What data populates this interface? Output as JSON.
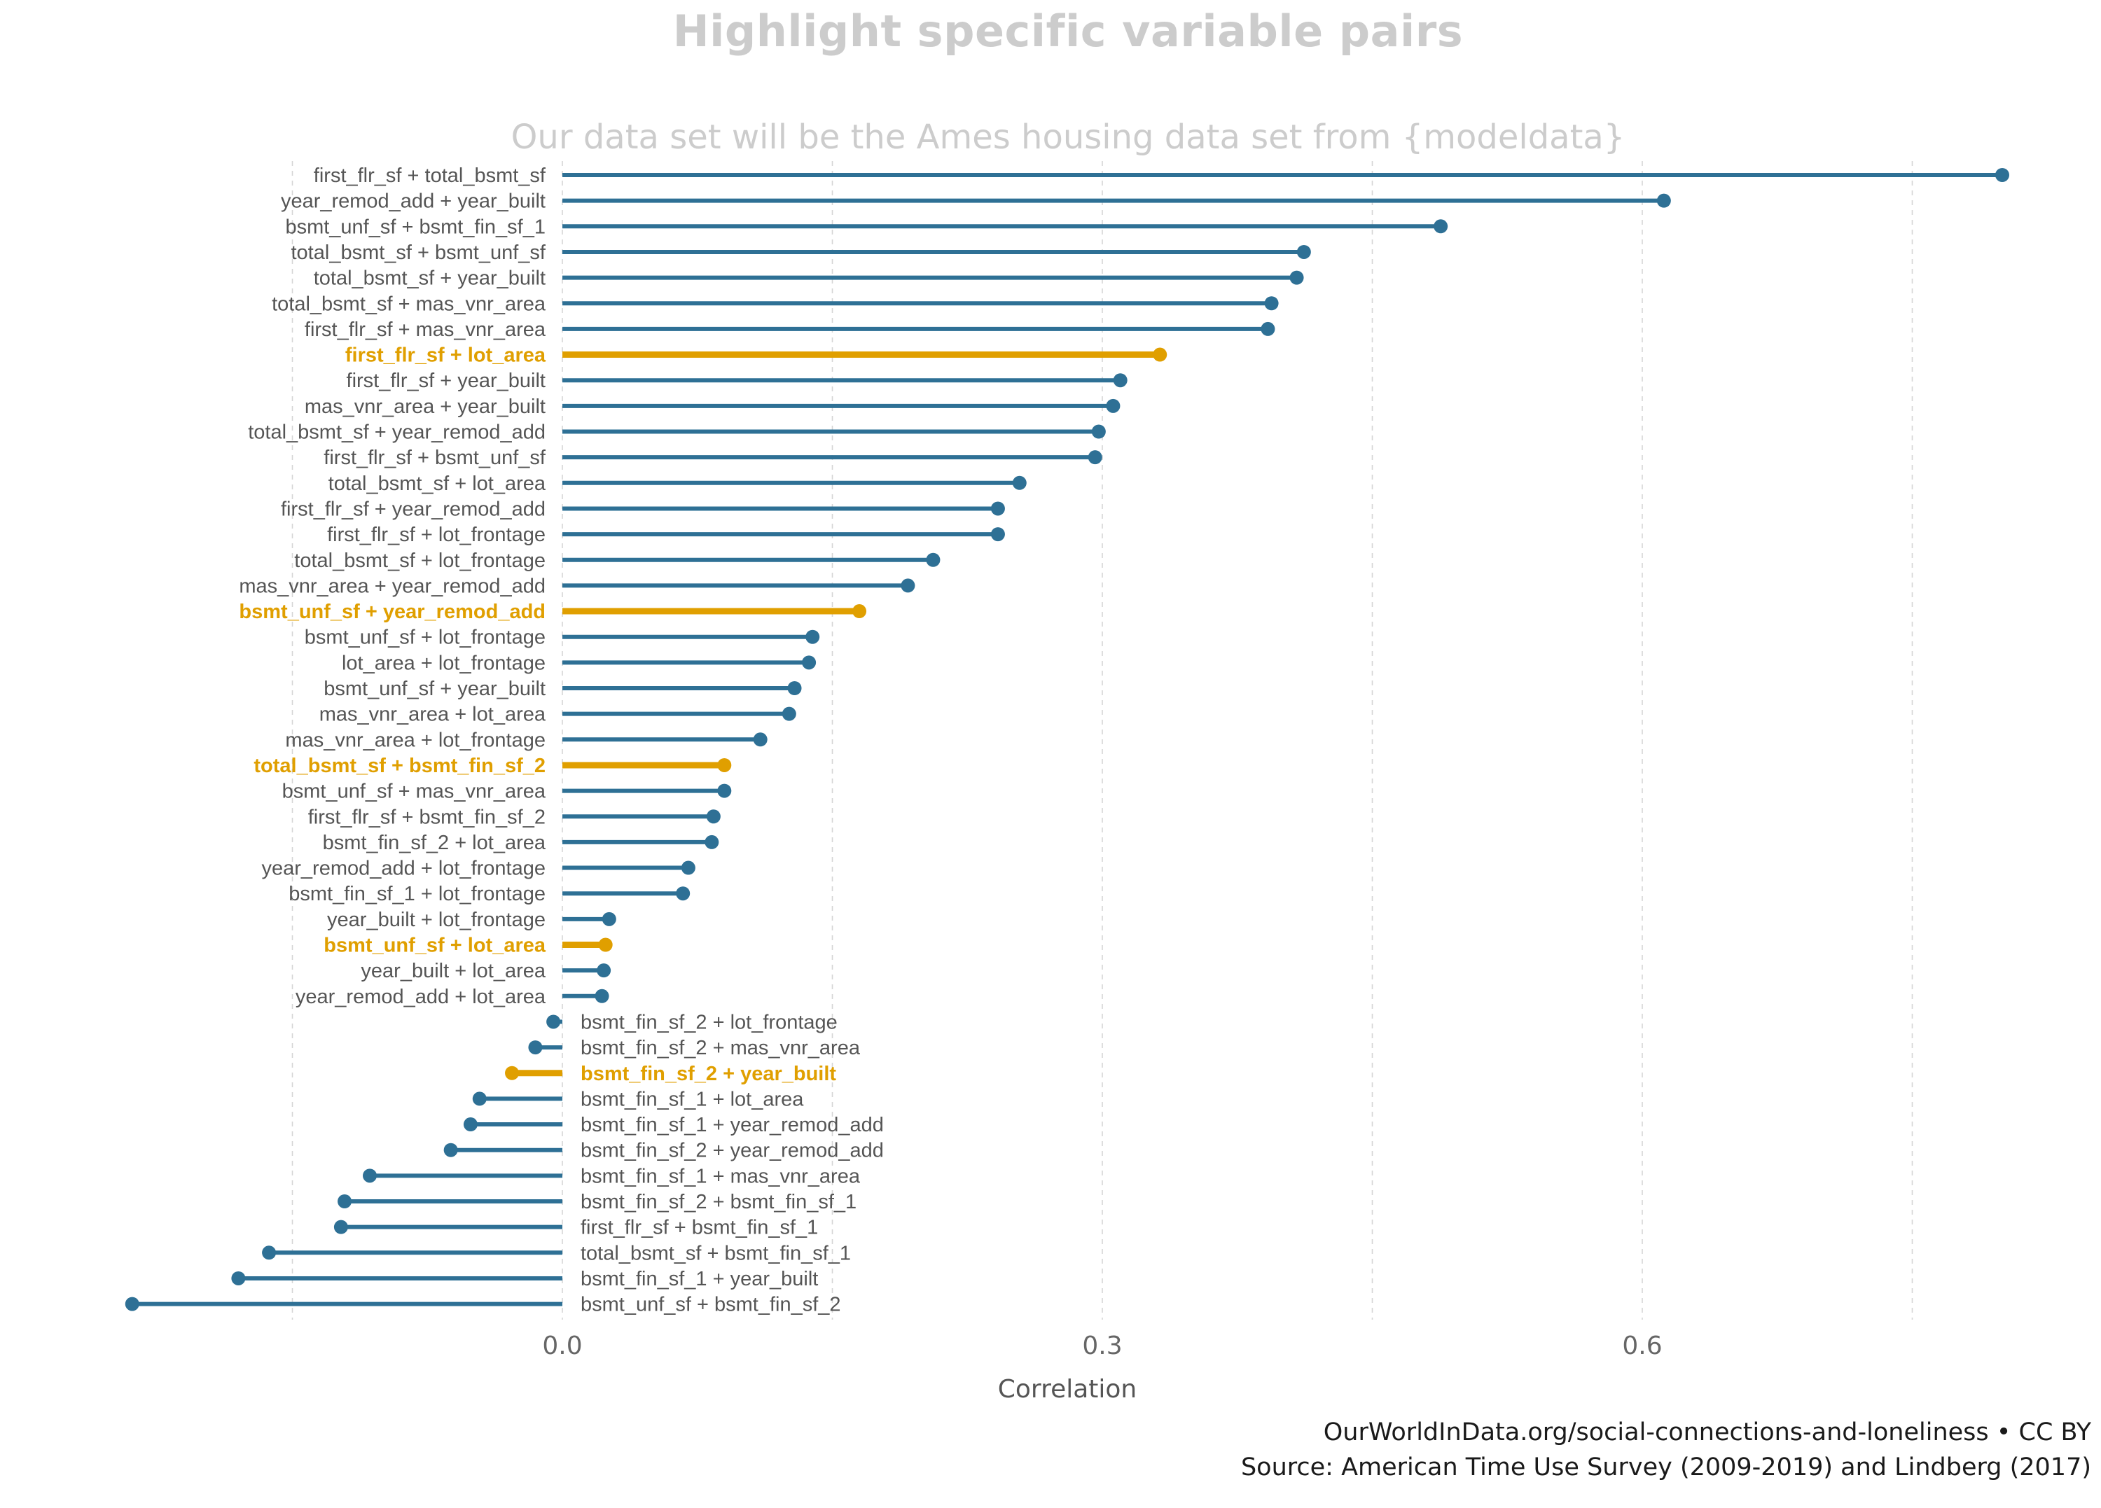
{
  "title": "Highlight specific variable pairs",
  "subtitle": "Our data set will be the Ames housing data set from {modeldata}",
  "caption": {
    "line1": "OurWorldInData.org/social-connections-and-loneliness  •  CC BY",
    "line2": "Source: American Time Use Survey (2009-2019) and Lindberg (2017)"
  },
  "colors": {
    "base": "#2e7095",
    "highlight": "#e09f00",
    "grid": "#d5d5d5",
    "label": "#555555",
    "title": "#cccccc"
  },
  "chart_data": {
    "type": "lollipop",
    "xlabel": "Correlation",
    "ylabel": "",
    "xlim": [
      -0.24,
      0.81
    ],
    "xticks": [
      0.0,
      0.3,
      0.6
    ],
    "xtick_labels": [
      "0.0",
      "0.3",
      "0.6"
    ],
    "grid": "vertical dashed",
    "pairs": [
      {
        "label": "first_flr_sf + total_bsmt_sf",
        "value": 0.8,
        "highlight": false
      },
      {
        "label": "year_remod_add + year_built",
        "value": 0.612,
        "highlight": false
      },
      {
        "label": "bsmt_unf_sf + bsmt_fin_sf_1",
        "value": 0.488,
        "highlight": false
      },
      {
        "label": "total_bsmt_sf + bsmt_unf_sf",
        "value": 0.412,
        "highlight": false
      },
      {
        "label": "total_bsmt_sf + year_built",
        "value": 0.408,
        "highlight": false
      },
      {
        "label": "total_bsmt_sf + mas_vnr_area",
        "value": 0.394,
        "highlight": false
      },
      {
        "label": "first_flr_sf + mas_vnr_area",
        "value": 0.392,
        "highlight": false
      },
      {
        "label": "first_flr_sf + lot_area",
        "value": 0.332,
        "highlight": true
      },
      {
        "label": "first_flr_sf + year_built",
        "value": 0.31,
        "highlight": false
      },
      {
        "label": "mas_vnr_area + year_built",
        "value": 0.306,
        "highlight": false
      },
      {
        "label": "total_bsmt_sf + year_remod_add",
        "value": 0.298,
        "highlight": false
      },
      {
        "label": "first_flr_sf + bsmt_unf_sf",
        "value": 0.296,
        "highlight": false
      },
      {
        "label": "total_bsmt_sf + lot_area",
        "value": 0.254,
        "highlight": false
      },
      {
        "label": "first_flr_sf + year_remod_add",
        "value": 0.242,
        "highlight": false
      },
      {
        "label": "first_flr_sf + lot_frontage",
        "value": 0.242,
        "highlight": false
      },
      {
        "label": "total_bsmt_sf + lot_frontage",
        "value": 0.206,
        "highlight": false
      },
      {
        "label": "mas_vnr_area + year_remod_add",
        "value": 0.192,
        "highlight": false
      },
      {
        "label": "bsmt_unf_sf + year_remod_add",
        "value": 0.165,
        "highlight": true
      },
      {
        "label": "bsmt_unf_sf + lot_frontage",
        "value": 0.139,
        "highlight": false
      },
      {
        "label": "lot_area + lot_frontage",
        "value": 0.137,
        "highlight": false
      },
      {
        "label": "bsmt_unf_sf + year_built",
        "value": 0.129,
        "highlight": false
      },
      {
        "label": "mas_vnr_area + lot_area",
        "value": 0.126,
        "highlight": false
      },
      {
        "label": "mas_vnr_area + lot_frontage",
        "value": 0.11,
        "highlight": false
      },
      {
        "label": "total_bsmt_sf + bsmt_fin_sf_2",
        "value": 0.09,
        "highlight": true
      },
      {
        "label": "bsmt_unf_sf + mas_vnr_area",
        "value": 0.09,
        "highlight": false
      },
      {
        "label": "first_flr_sf + bsmt_fin_sf_2",
        "value": 0.084,
        "highlight": false
      },
      {
        "label": "bsmt_fin_sf_2 + lot_area",
        "value": 0.083,
        "highlight": false
      },
      {
        "label": "year_remod_add + lot_frontage",
        "value": 0.07,
        "highlight": false
      },
      {
        "label": "bsmt_fin_sf_1 + lot_frontage",
        "value": 0.067,
        "highlight": false
      },
      {
        "label": "year_built + lot_frontage",
        "value": 0.026,
        "highlight": false
      },
      {
        "label": "bsmt_unf_sf + lot_area",
        "value": 0.024,
        "highlight": true
      },
      {
        "label": "year_built + lot_area",
        "value": 0.023,
        "highlight": false
      },
      {
        "label": "year_remod_add + lot_area",
        "value": 0.022,
        "highlight": false
      },
      {
        "label": "bsmt_fin_sf_2 + lot_frontage",
        "value": -0.005,
        "highlight": false
      },
      {
        "label": "bsmt_fin_sf_2 + mas_vnr_area",
        "value": -0.015,
        "highlight": false
      },
      {
        "label": "bsmt_fin_sf_2 + year_built",
        "value": -0.028,
        "highlight": true
      },
      {
        "label": "bsmt_fin_sf_1 + lot_area",
        "value": -0.046,
        "highlight": false
      },
      {
        "label": "bsmt_fin_sf_1 + year_remod_add",
        "value": -0.051,
        "highlight": false
      },
      {
        "label": "bsmt_fin_sf_2 + year_remod_add",
        "value": -0.062,
        "highlight": false
      },
      {
        "label": "bsmt_fin_sf_1 + mas_vnr_area",
        "value": -0.107,
        "highlight": false
      },
      {
        "label": "bsmt_fin_sf_2 + bsmt_fin_sf_1",
        "value": -0.121,
        "highlight": false
      },
      {
        "label": "first_flr_sf + bsmt_fin_sf_1",
        "value": -0.123,
        "highlight": false
      },
      {
        "label": "total_bsmt_sf + bsmt_fin_sf_1",
        "value": -0.163,
        "highlight": false
      },
      {
        "label": "bsmt_fin_sf_1 + year_built",
        "value": -0.18,
        "highlight": false
      },
      {
        "label": "bsmt_unf_sf + bsmt_fin_sf_2",
        "value": -0.239,
        "highlight": false
      }
    ]
  }
}
